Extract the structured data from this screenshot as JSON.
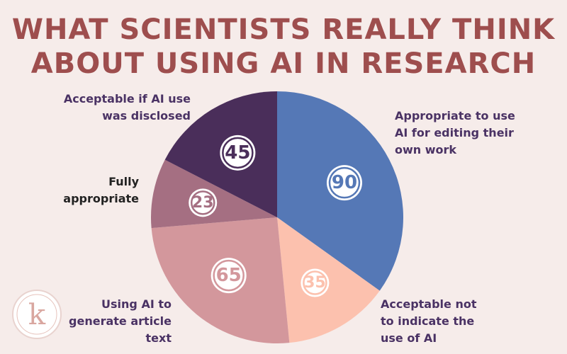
{
  "header": {
    "title_line1": "WHAT SCIENTISTS REALLY THINK",
    "title_line2": "ABOUT USING AI IN RESEARCH"
  },
  "chart_data": {
    "type": "pie",
    "title": "WHAT SCIENTISTS REALLY THINK ABOUT USING AI IN RESEARCH",
    "start_angle_deg": 0,
    "direction": "clockwise",
    "slices": [
      {
        "label": "Appropriate to use AI for editing their own work",
        "value": 90,
        "color": "#5578b6"
      },
      {
        "label": "Acceptable not to indicate the use of AI",
        "value": 35,
        "color": "#fcc1ae"
      },
      {
        "label": "Using AI to generate article text",
        "value": 65,
        "color": "#d3979c"
      },
      {
        "label": "Fully appropriate",
        "value": 23,
        "color": "#a56f82"
      },
      {
        "label": "Acceptable if AI use was disclosed",
        "value": 45,
        "color": "#4a2e5a"
      }
    ]
  },
  "labels": {
    "editing_line1": "Appropriate to use",
    "editing_line2": "AI for editing their",
    "editing_line3": "own work",
    "not_indicate_line1": "Acceptable not",
    "not_indicate_line2": "to indicate the",
    "not_indicate_line3": "use of AI",
    "generate_line1": "Using AI to",
    "generate_line2": "generate article",
    "generate_line3": "text",
    "fully_line1": "Fully",
    "fully_line2": "appropriate",
    "disclosed_line1": "Acceptable if AI use",
    "disclosed_line2": "was disclosed"
  },
  "logo": {
    "letter": "k",
    "icon": "k-logo-icon",
    "color": "#d9a7a0"
  }
}
